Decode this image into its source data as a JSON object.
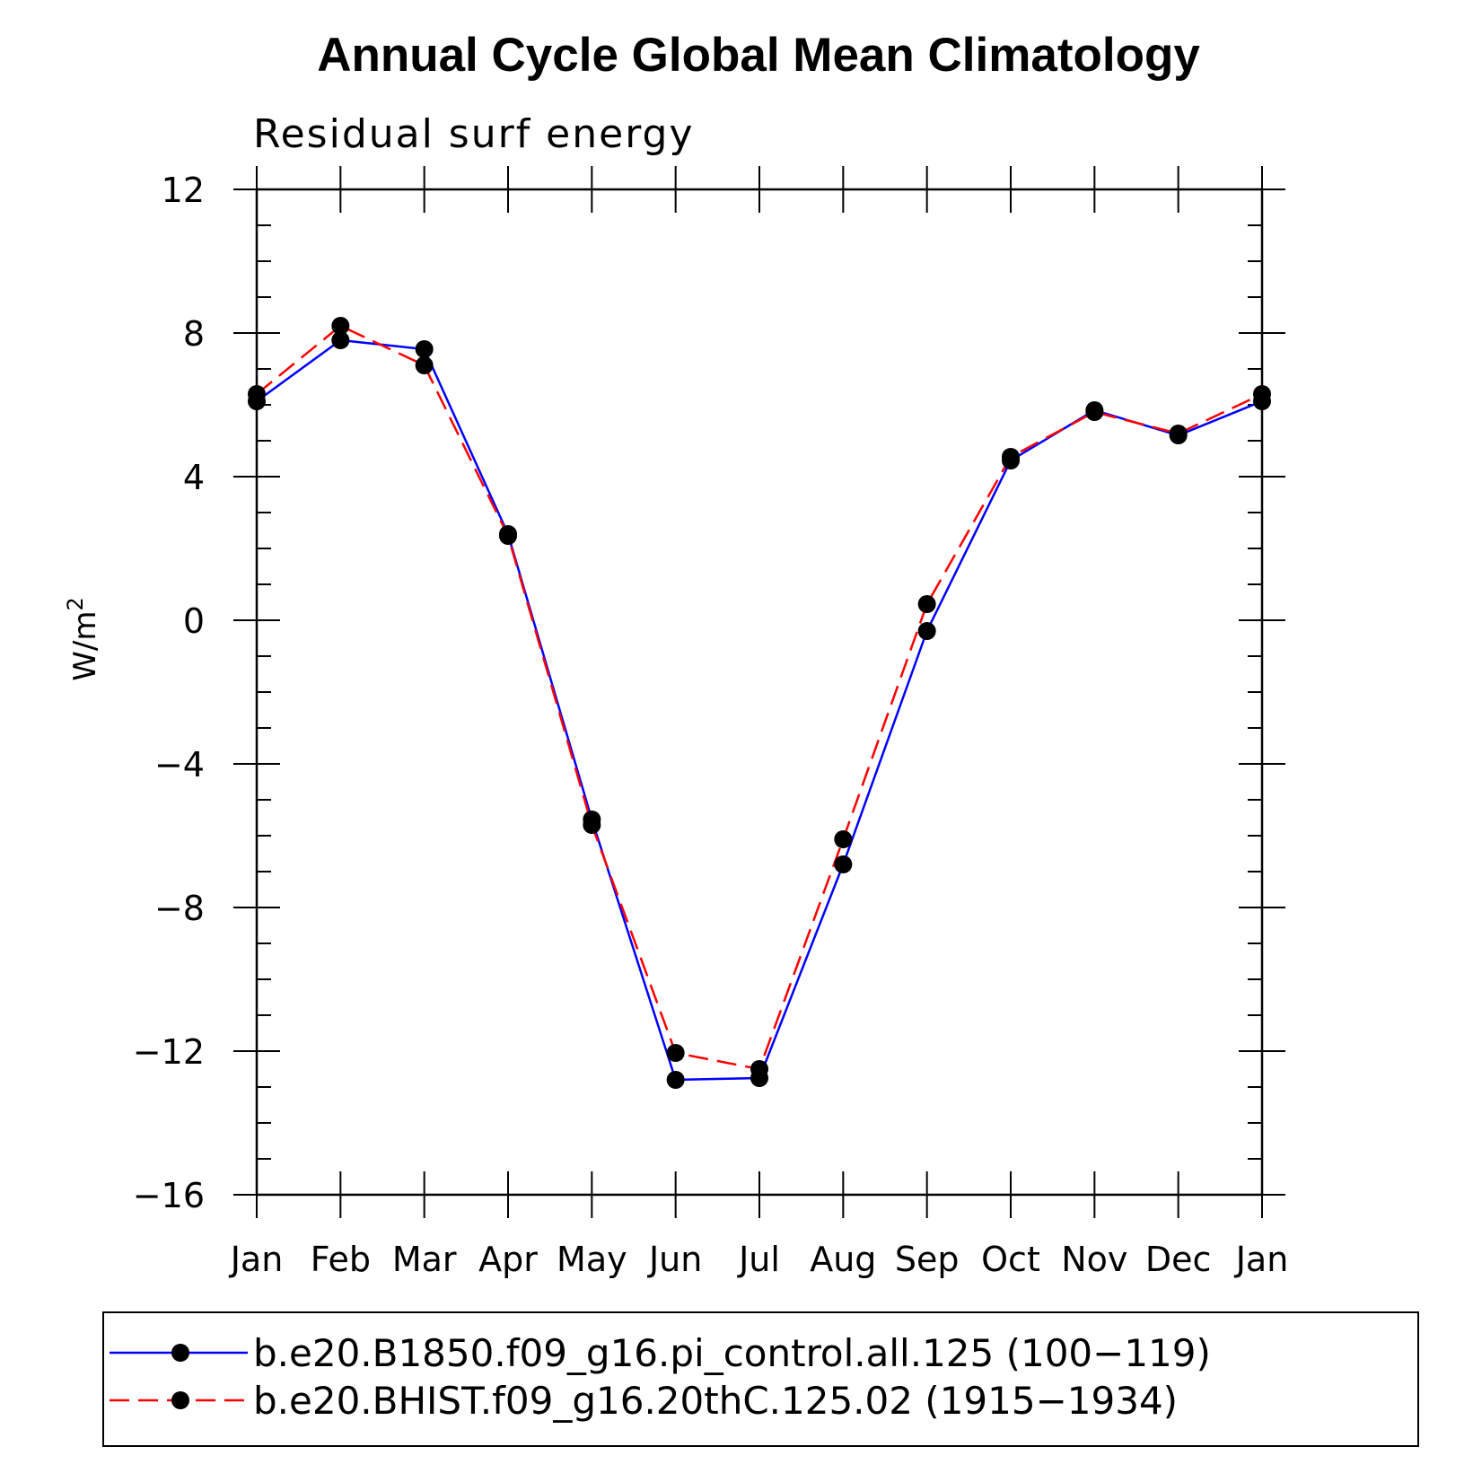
{
  "chart_data": {
    "type": "line",
    "title": "Annual Cycle Global Mean Climatology",
    "subtitle": "Residual surf energy",
    "xlabel": "",
    "ylabel": "W/m",
    "ylabel_superscript": "2",
    "categories": [
      "Jan",
      "Feb",
      "Mar",
      "Apr",
      "May",
      "Jun",
      "Jul",
      "Aug",
      "Sep",
      "Oct",
      "Nov",
      "Dec",
      "Jan"
    ],
    "ylim": [
      -16,
      12
    ],
    "yticks": [
      12,
      8,
      4,
      0,
      -4,
      -8,
      -12,
      -16
    ],
    "ytick_labels": [
      "12",
      "8",
      "4",
      "0",
      "−4",
      "−8",
      "−12",
      "−16"
    ],
    "grid": false,
    "legend_position": "bottom",
    "series": [
      {
        "name": "b.e20.B1850.f09_g16.pi_control.all.125 (100−119)",
        "color": "#0000ff",
        "line_style": "solid",
        "marker": "circle",
        "values": [
          6.1,
          7.8,
          7.55,
          2.4,
          -5.55,
          -12.8,
          -12.75,
          -6.8,
          -0.3,
          4.45,
          5.85,
          5.15,
          6.1
        ]
      },
      {
        "name": "b.e20.BHIST.f09_g16.20thC.125.02 (1915−1934)",
        "color": "#ff0000",
        "line_style": "dashed",
        "marker": "circle",
        "values": [
          6.3,
          8.2,
          7.1,
          2.35,
          -5.7,
          -12.05,
          -12.5,
          -6.1,
          0.45,
          4.55,
          5.8,
          5.2,
          6.3
        ]
      }
    ]
  }
}
